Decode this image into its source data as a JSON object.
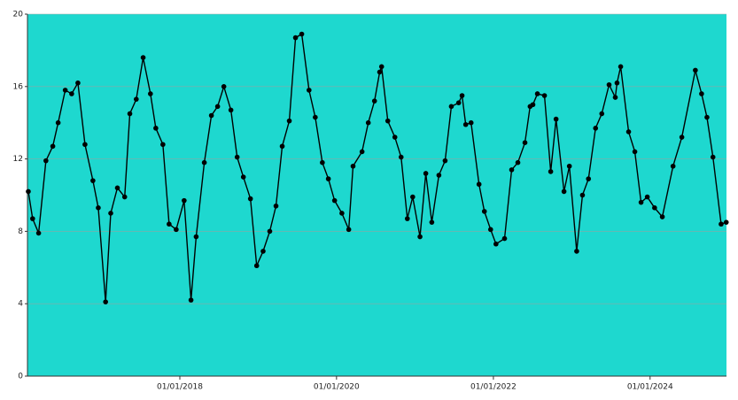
{
  "chart_data": {
    "type": "line",
    "color": "#000000",
    "background": "#1ed8cf",
    "grid": true,
    "x": [
      "2016-01-26",
      "2016-02-15",
      "2016-03-14",
      "2016-04-17",
      "2016-05-19",
      "2016-06-13",
      "2016-07-16",
      "2016-08-15",
      "2016-09-13",
      "2016-10-16",
      "2016-11-22",
      "2016-12-17",
      "2017-01-20",
      "2017-02-13",
      "2017-03-16",
      "2017-04-19",
      "2017-05-13",
      "2017-06-12",
      "2017-07-14",
      "2017-08-17",
      "2017-09-11",
      "2017-10-14",
      "2017-11-12",
      "2017-12-15",
      "2018-01-21",
      "2018-02-22",
      "2018-03-18",
      "2018-04-25",
      "2018-05-28",
      "2018-06-26",
      "2018-07-25",
      "2018-08-27",
      "2018-09-25",
      "2018-10-24",
      "2018-11-26",
      "2018-12-25",
      "2019-01-24",
      "2019-02-24",
      "2019-03-25",
      "2019-04-23",
      "2019-05-26",
      "2019-06-24",
      "2019-07-23",
      "2019-08-26",
      "2019-09-24",
      "2019-10-27",
      "2019-11-24",
      "2019-12-23",
      "2020-01-26",
      "2020-02-27",
      "2020-03-18",
      "2020-04-29",
      "2020-05-28",
      "2020-06-26",
      "2020-07-20",
      "2020-07-29",
      "2020-08-27",
      "2020-09-29",
      "2020-10-28",
      "2020-11-26",
      "2020-12-21",
      "2021-01-24",
      "2021-02-20",
      "2021-03-20",
      "2021-04-22",
      "2021-05-21",
      "2021-06-19",
      "2021-07-23",
      "2021-08-08",
      "2021-08-25",
      "2021-09-19",
      "2021-10-26",
      "2021-11-20",
      "2021-12-19",
      "2022-01-13",
      "2022-02-22",
      "2022-03-27",
      "2022-04-25",
      "2022-05-28",
      "2022-06-21",
      "2022-07-04",
      "2022-07-25",
      "2022-08-27",
      "2022-09-25",
      "2022-10-20",
      "2022-11-26",
      "2022-12-21",
      "2023-01-24",
      "2023-02-20",
      "2023-03-20",
      "2023-04-22",
      "2023-05-21",
      "2023-06-24",
      "2023-07-23",
      "2023-07-31",
      "2023-08-17",
      "2023-09-23",
      "2023-10-22",
      "2023-11-20",
      "2023-12-19",
      "2024-01-22",
      "2024-02-27",
      "2024-04-17",
      "2024-05-28",
      "2024-07-30",
      "2024-08-28",
      "2024-09-22",
      "2024-10-20",
      "2024-11-27",
      "2024-12-21"
    ],
    "values": [
      10.2,
      8.7,
      7.9,
      11.9,
      12.7,
      14.0,
      15.8,
      15.6,
      16.2,
      12.8,
      10.8,
      9.3,
      4.1,
      9.0,
      10.4,
      9.9,
      14.5,
      15.3,
      17.6,
      15.6,
      13.7,
      12.8,
      8.4,
      8.1,
      9.7,
      4.2,
      7.7,
      11.8,
      14.4,
      14.9,
      16.0,
      14.7,
      12.1,
      11.0,
      9.8,
      6.1,
      6.9,
      8.0,
      9.4,
      12.7,
      14.1,
      18.7,
      18.9,
      15.8,
      14.3,
      11.8,
      10.9,
      9.7,
      9.0,
      8.1,
      11.6,
      12.4,
      14.0,
      15.2,
      16.8,
      17.1,
      14.1,
      13.2,
      12.1,
      8.7,
      9.9,
      7.7,
      11.2,
      8.5,
      11.1,
      11.9,
      14.9,
      15.1,
      15.5,
      13.9,
      14.0,
      10.6,
      9.1,
      8.1,
      7.3,
      7.6,
      11.4,
      11.8,
      12.9,
      14.9,
      15.0,
      15.6,
      15.5,
      11.3,
      14.2,
      10.2,
      11.6,
      6.9,
      10.0,
      10.9,
      13.7,
      14.5,
      16.1,
      15.4,
      16.2,
      17.1,
      13.5,
      12.4,
      9.6,
      9.9,
      9.3,
      8.8,
      11.6,
      13.2,
      16.9,
      15.6,
      14.3,
      12.1,
      8.4,
      8.5
    ],
    "xlim": [
      "2016-01-22",
      "2024-12-22"
    ],
    "xticks": [
      {
        "value": "2018-01-01",
        "label": "01/01/2018"
      },
      {
        "value": "2020-01-01",
        "label": "01/01/2020"
      },
      {
        "value": "2022-01-01",
        "label": "01/01/2022"
      },
      {
        "value": "2024-01-01",
        "label": "01/01/2024"
      }
    ],
    "ylim": [
      0,
      20
    ],
    "yticks": [
      0,
      4,
      8,
      12,
      16,
      20
    ]
  }
}
